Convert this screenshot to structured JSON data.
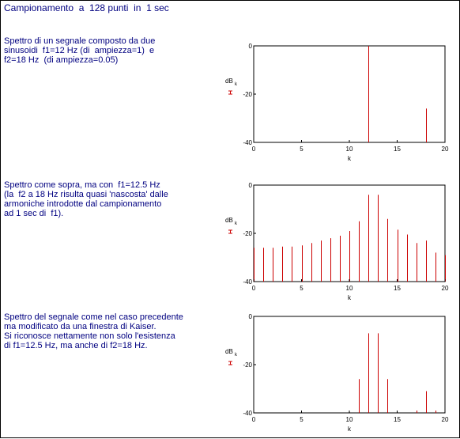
{
  "title": "Campionamento  a  128 punti  in  1 sec",
  "descriptions": [
    "Spettro di un segnale composto da due\nsinusoidi  f1=12 Hz (di  ampiezza=1)  e\nf2=18 Hz  (di ampiezza=0.05)",
    "Spettro come sopra, ma con  f1=12.5 Hz\n(la  f2 a 18 Hz risulta quasi 'nascosta' dalle\narmoniche introdotte dal campionamento\nad 1 sec di  f1).",
    "Spettro del segnale come nel caso precedente\nma modificato da una finestra di Kaiser.\nSi riconosce nettamente non solo l'esistenza\ndi f1=12.5 Hz, ma anche di f2=18 Hz."
  ],
  "colors": {
    "text": "#000080",
    "stem": "#cc0000",
    "axis": "#000000"
  },
  "chart_data": [
    {
      "type": "bar",
      "xlabel": "k",
      "ylabel": "dB",
      "ylabel_sub": "k",
      "ylim": [
        -40,
        0
      ],
      "xlim": [
        0,
        20
      ],
      "xticks": [
        "0",
        "5",
        "10",
        "15",
        "20"
      ],
      "yticks": [
        "0",
        "-20",
        "-40"
      ],
      "grid": false,
      "x": [
        12,
        18
      ],
      "values": [
        0,
        -26
      ]
    },
    {
      "type": "bar",
      "xlabel": "k",
      "ylabel": "dB",
      "ylabel_sub": "k",
      "ylim": [
        -40,
        0
      ],
      "xlim": [
        0,
        20
      ],
      "xticks": [
        "0",
        "5",
        "10",
        "15",
        "20"
      ],
      "yticks": [
        "0",
        "-20",
        "-40"
      ],
      "grid": false,
      "x": [
        0,
        1,
        2,
        3,
        4,
        5,
        6,
        7,
        8,
        9,
        10,
        11,
        12,
        13,
        14,
        15,
        16,
        17,
        18,
        19,
        20
      ],
      "values": [
        -26,
        -26,
        -26,
        -25.5,
        -25.5,
        -25,
        -24,
        -23,
        -22,
        -21,
        -19,
        -15,
        -4,
        -4,
        -14,
        -18.5,
        -20.5,
        -24,
        -23,
        -28,
        -29
      ]
    },
    {
      "type": "bar",
      "xlabel": "k",
      "ylabel": "dB",
      "ylabel_sub": "k",
      "ylim": [
        -40,
        0
      ],
      "xlim": [
        0,
        20
      ],
      "xticks": [
        "0",
        "5",
        "10",
        "15",
        "20"
      ],
      "yticks": [
        "0",
        "-20",
        "-40"
      ],
      "grid": false,
      "x": [
        11,
        12,
        13,
        14,
        17,
        18,
        19
      ],
      "values": [
        -26,
        -7,
        -7,
        -26,
        -39,
        -31,
        -39
      ]
    }
  ]
}
